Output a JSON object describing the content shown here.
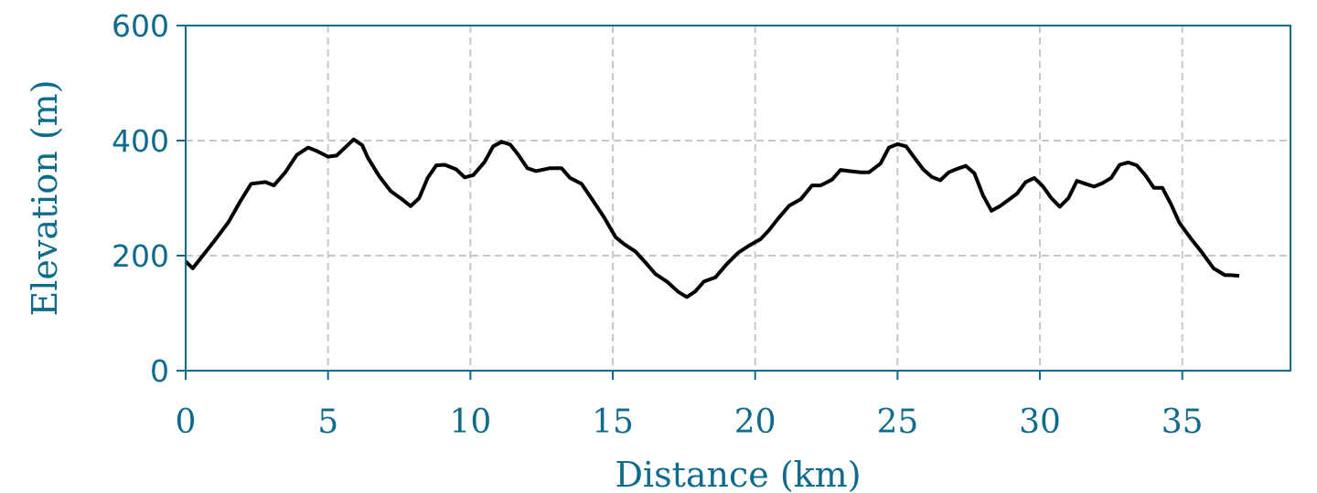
{
  "chart_data": {
    "type": "line",
    "title": "",
    "xlabel": "Distance (km)",
    "ylabel": "Elevation (m)",
    "xlim": [
      0,
      38.8
    ],
    "ylim": [
      0,
      600
    ],
    "xticks": [
      0,
      5,
      10,
      15,
      20,
      25,
      30,
      35
    ],
    "yticks": [
      0,
      200,
      400,
      600
    ],
    "grid": true,
    "legend": "none",
    "colors": {
      "axis": "#0e6b8c",
      "line": "#000000",
      "grid": "#c8c8c8"
    },
    "series": [
      {
        "x": [
          0,
          0.25,
          0.6,
          1.0,
          1.5,
          1.9,
          2.3,
          2.8,
          3.1,
          3.5,
          3.9,
          4.3,
          4.6,
          5.0,
          5.3,
          5.6,
          5.9,
          6.2,
          6.4,
          6.8,
          7.2,
          7.6,
          7.9,
          8.2,
          8.5,
          8.8,
          9.1,
          9.5,
          9.8,
          10.1,
          10.5,
          10.8,
          11.1,
          11.4,
          11.7,
          12.0,
          12.3,
          12.8,
          13.2,
          13.5,
          13.9,
          14.3,
          14.7,
          15.1,
          15.4,
          15.8,
          16.2,
          16.5,
          16.9,
          17.3,
          17.6,
          17.9,
          18.2,
          18.6,
          19.0,
          19.4,
          19.8,
          20.2,
          20.5,
          20.8,
          21.2,
          21.6,
          22.0,
          22.3,
          22.7,
          23.0,
          23.3,
          23.7,
          24.0,
          24.4,
          24.7,
          25.0,
          25.3,
          25.6,
          25.9,
          26.2,
          26.5,
          26.8,
          27.1,
          27.4,
          27.7,
          28.0,
          28.3,
          28.6,
          28.9,
          29.2,
          29.5,
          29.8,
          30.1,
          30.4,
          30.7,
          31.0,
          31.3,
          31.6,
          31.9,
          32.2,
          32.5,
          32.8,
          33.1,
          33.4,
          33.7,
          34.0,
          34.3,
          34.6,
          34.9,
          35.3,
          35.7,
          36.1,
          36.5,
          36.7,
          37.0
        ],
        "y": [
          190,
          178,
          200,
          225,
          258,
          293,
          325,
          328,
          322,
          345,
          375,
          388,
          382,
          372,
          374,
          388,
          402,
          392,
          370,
          338,
          312,
          298,
          286,
          300,
          335,
          357,
          358,
          350,
          336,
          340,
          363,
          390,
          398,
          393,
          374,
          352,
          347,
          352,
          352,
          335,
          325,
          296,
          266,
          232,
          220,
          207,
          185,
          168,
          155,
          137,
          128,
          138,
          155,
          162,
          185,
          205,
          218,
          229,
          245,
          264,
          287,
          298,
          322,
          322,
          332,
          349,
          347,
          345,
          345,
          360,
          388,
          394,
          390,
          370,
          350,
          337,
          331,
          345,
          351,
          356,
          343,
          305,
          278,
          286,
          297,
          308,
          328,
          335,
          321,
          300,
          285,
          300,
          330,
          325,
          320,
          326,
          335,
          358,
          362,
          357,
          340,
          318,
          318,
          290,
          257,
          230,
          205,
          178,
          166,
          166,
          165
        ]
      }
    ]
  }
}
